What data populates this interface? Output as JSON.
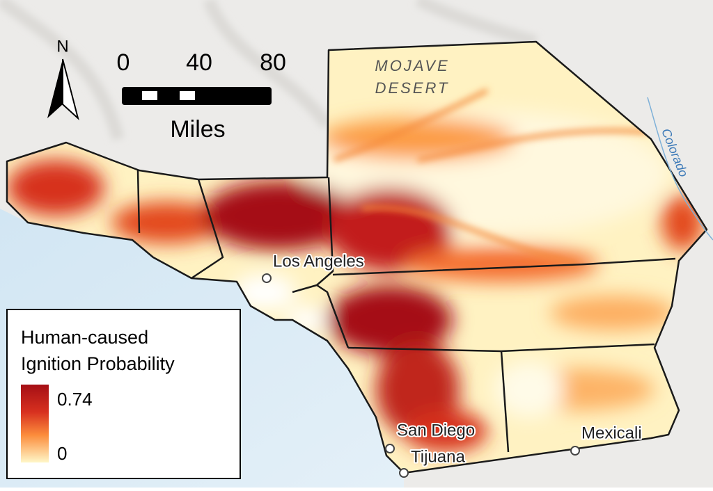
{
  "north_arrow": {
    "label": "N"
  },
  "scale_bar": {
    "ticks": [
      "0",
      "40",
      "80"
    ],
    "unit": "Miles"
  },
  "region_labels": {
    "desert": [
      "MOJAVE",
      "DESERT"
    ],
    "river": "Colorado"
  },
  "cities": [
    "Los Angeles",
    "San Diego",
    "Tijuana",
    "Mexicali"
  ],
  "legend": {
    "title": [
      "Human-caused",
      "Ignition Probability"
    ],
    "max": "0.74",
    "min": "0"
  }
}
